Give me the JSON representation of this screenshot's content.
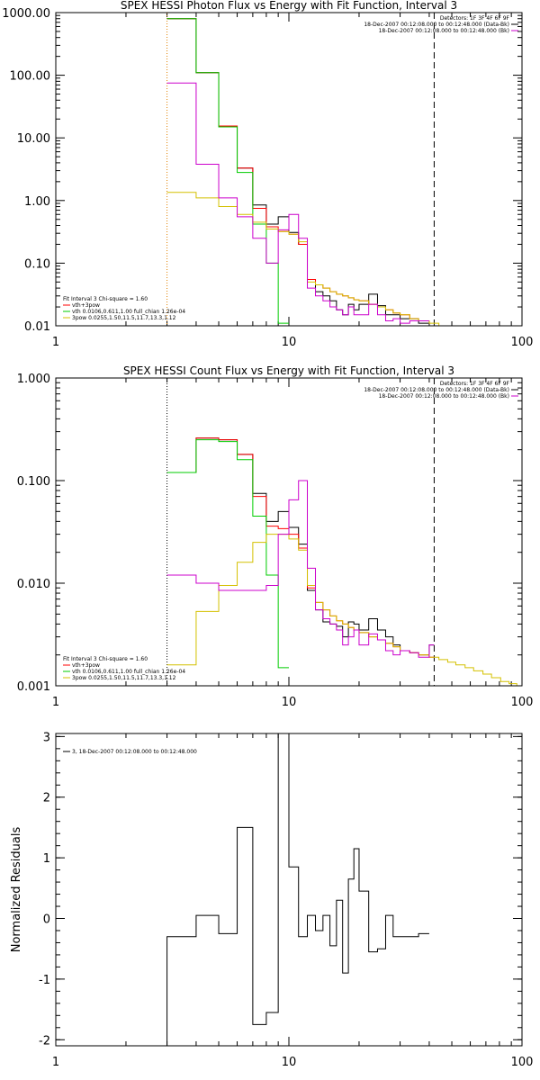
{
  "chart_data": [
    {
      "type": "line",
      "title": "SPEX HESSI Photon Flux vs Energy with Fit Function, Interval 3",
      "xlim": [
        1,
        100
      ],
      "ylim": [
        0.01,
        1000
      ],
      "xscale": "log",
      "yscale": "log",
      "xticks": [
        1,
        10,
        100
      ],
      "xtick_labels": [
        "1",
        "10",
        "100"
      ],
      "yticks": [
        0.01,
        0.1,
        1,
        10,
        100,
        1000
      ],
      "ytick_labels": [
        "0.01",
        "0.10",
        "1.00",
        "10.00",
        "100.00",
        "1000.00"
      ],
      "vlines": [
        {
          "x": 3.0,
          "style": "dotted",
          "color": "#e08000"
        },
        {
          "x": 42,
          "style": "dashed",
          "color": "#000000"
        }
      ],
      "info": [
        "Detectors: 1F 3F 4F 6F 9F",
        "18-Dec-2007 00:12:08.000 to 00:12:48.000 (Data-Bk)",
        "18-Dec-2007 00:12:08.000 to 00:12:48.000 (Bk)"
      ],
      "info_colors": [
        "#000000",
        "#000000",
        "#cc00cc"
      ],
      "legend": [
        "Fit Interval 3   Chi-square = 1.60",
        "vth+3pow",
        "vth 0.0106,0.611,1.00  full_chian 1.26e-04",
        "3pow 0.0255,1.50,11.5,11.7,13.3,1.12"
      ],
      "legend_colors": [
        "#000000",
        "#ff0000",
        "#00cc00",
        "#d4c000"
      ],
      "series": [
        {
          "color": "#000000",
          "edges": [
            3,
            4,
            5,
            6,
            7,
            8,
            9,
            10,
            11,
            12,
            13,
            14,
            15,
            16,
            17,
            18,
            19,
            20,
            22,
            24,
            26,
            28,
            30,
            33,
            36,
            40
          ],
          "values": [
            800,
            110,
            15.5,
            3.3,
            0.85,
            0.42,
            0.55,
            0.31,
            0.2,
            0.055,
            0.035,
            0.03,
            0.025,
            0.018,
            0.015,
            0.022,
            0.018,
            0.022,
            0.032,
            0.021,
            0.015,
            0.015,
            0.013,
            0.013,
            0.011
          ]
        },
        {
          "color": "#ff0000",
          "edges": [
            3,
            4,
            5,
            6,
            7,
            8,
            9,
            10,
            11,
            12,
            13,
            14,
            15,
            16,
            17,
            18,
            19,
            20,
            22,
            24,
            26,
            28,
            30,
            33,
            36,
            40
          ],
          "values": [
            800,
            110,
            15.5,
            3.3,
            0.75,
            0.38,
            0.32,
            0.29,
            0.2,
            0.055,
            0.045,
            0.04,
            0.035,
            0.032,
            0.03,
            0.028,
            0.026,
            0.025,
            0.022,
            0.02,
            0.018,
            0.016,
            0.015,
            0.013,
            0.012
          ]
        },
        {
          "color": "#00cc00",
          "edges": [
            3,
            4,
            5,
            6,
            7,
            8,
            9,
            10
          ],
          "values": [
            800,
            110,
            15,
            2.8,
            0.42,
            0.1,
            0.011
          ]
        },
        {
          "color": "#d4c000",
          "edges": [
            3,
            4,
            5,
            6,
            7,
            8,
            9,
            10,
            11,
            12,
            13,
            14,
            15,
            16,
            17,
            18,
            19,
            20,
            22,
            24,
            26,
            28,
            30,
            33,
            36,
            40,
            44,
            48
          ],
          "values": [
            1.35,
            1.1,
            0.8,
            0.6,
            0.45,
            0.35,
            0.32,
            0.29,
            0.22,
            0.05,
            0.045,
            0.04,
            0.035,
            0.032,
            0.03,
            0.028,
            0.026,
            0.025,
            0.022,
            0.02,
            0.018,
            0.016,
            0.015,
            0.013,
            0.012,
            0.011,
            0.01
          ]
        },
        {
          "color": "#cc00cc",
          "edges": [
            3,
            4,
            5,
            6,
            7,
            8,
            9,
            10,
            11,
            12,
            13,
            14,
            15,
            16,
            17,
            18,
            19,
            20,
            22,
            24,
            26,
            28,
            30,
            33,
            36,
            40
          ],
          "values": [
            75,
            3.8,
            1.1,
            0.55,
            0.25,
            0.1,
            0.34,
            0.6,
            0.25,
            0.04,
            0.03,
            0.025,
            0.02,
            0.018,
            0.015,
            0.02,
            0.015,
            0.015,
            0.022,
            0.015,
            0.012,
            0.013,
            0.011,
            0.012,
            0.012
          ]
        }
      ]
    },
    {
      "type": "line",
      "title": "SPEX HESSI Count Flux vs Energy with Fit Function, Interval 3",
      "xlim": [
        1,
        100
      ],
      "ylim": [
        0.001,
        1
      ],
      "xscale": "log",
      "yscale": "log",
      "xticks": [
        1,
        10,
        100
      ],
      "xtick_labels": [
        "1",
        "10",
        "100"
      ],
      "yticks": [
        0.001,
        0.01,
        0.1,
        1
      ],
      "ytick_labels": [
        "0.001",
        "0.010",
        "0.100",
        "1.000"
      ],
      "vlines": [
        {
          "x": 3.0,
          "style": "dotted",
          "color": "#000000"
        },
        {
          "x": 42,
          "style": "dashed",
          "color": "#000000"
        }
      ],
      "info": [
        "Detectors: 1F 3F 4F 6F 9F",
        "18-Dec-2007 00:12:08.000 to 00:12:48.000 (Data-Bk)",
        "18-Dec-2007 00:12:08.000 to 00:12:48.000 (Bk)"
      ],
      "info_colors": [
        "#000000",
        "#000000",
        "#cc00cc"
      ],
      "legend": [
        "Fit Interval 3   Chi-square = 1.60",
        "vth+3pow",
        "vth 0.0106,0.611,1.00  full_chian 1.26e-04",
        "3pow 0.0255,1.50,11.5,11.7,13.3,1.12"
      ],
      "legend_colors": [
        "#000000",
        "#ff0000",
        "#00cc00",
        "#d4c000"
      ],
      "series": [
        {
          "color": "#000000",
          "edges": [
            3,
            4,
            5,
            6,
            7,
            8,
            9,
            10,
            11,
            12,
            13,
            14,
            15,
            16,
            17,
            18,
            19,
            20,
            22,
            24,
            26,
            28,
            30,
            33,
            36,
            40,
            42
          ],
          "values": [
            0.12,
            0.26,
            0.25,
            0.18,
            0.075,
            0.04,
            0.05,
            0.035,
            0.024,
            0.0085,
            0.0055,
            0.0042,
            0.004,
            0.0038,
            0.003,
            0.0042,
            0.004,
            0.0035,
            0.0045,
            0.0035,
            0.003,
            0.0025,
            0.0022,
            0.0021,
            0.002,
            0.0025
          ]
        },
        {
          "color": "#ff0000",
          "edges": [
            3,
            4,
            5,
            6,
            7,
            8,
            9,
            10,
            11,
            12,
            13,
            14,
            15,
            16,
            17,
            18,
            19,
            20,
            22,
            24,
            26,
            28,
            30,
            33,
            36,
            40,
            42
          ],
          "values": [
            0.12,
            0.26,
            0.25,
            0.18,
            0.07,
            0.036,
            0.034,
            0.03,
            0.022,
            0.009,
            0.0065,
            0.0055,
            0.0048,
            0.0043,
            0.004,
            0.0037,
            0.0035,
            0.0033,
            0.003,
            0.0028,
            0.0026,
            0.0024,
            0.0022,
            0.0021,
            0.002,
            0.0019
          ]
        },
        {
          "color": "#00cc00",
          "edges": [
            3,
            4,
            5,
            6,
            7,
            8,
            9,
            10
          ],
          "values": [
            0.12,
            0.25,
            0.24,
            0.16,
            0.045,
            0.012,
            0.0015
          ]
        },
        {
          "color": "#d4c000",
          "edges": [
            3,
            4,
            5,
            6,
            7,
            8,
            9,
            10,
            11,
            12,
            13,
            14,
            15,
            16,
            17,
            18,
            19,
            20,
            22,
            24,
            26,
            28,
            30,
            33,
            36,
            40,
            44,
            48,
            52,
            57,
            62,
            68,
            74,
            81,
            88,
            95,
            100
          ],
          "values": [
            0.0016,
            0.0053,
            0.0095,
            0.016,
            0.025,
            0.03,
            0.03,
            0.027,
            0.021,
            0.0095,
            0.0065,
            0.0055,
            0.0048,
            0.0043,
            0.004,
            0.0037,
            0.0035,
            0.0033,
            0.003,
            0.0028,
            0.0026,
            0.0024,
            0.0022,
            0.0021,
            0.002,
            0.0019,
            0.0018,
            0.0017,
            0.0016,
            0.0015,
            0.0014,
            0.0013,
            0.0012,
            0.0011,
            0.00105,
            0.001
          ]
        },
        {
          "color": "#cc00cc",
          "edges": [
            3,
            4,
            5,
            6,
            7,
            8,
            9,
            10,
            11,
            12,
            13,
            14,
            15,
            16,
            17,
            18,
            19,
            20,
            22,
            24,
            26,
            28,
            30,
            33,
            36,
            40,
            42
          ],
          "values": [
            0.012,
            0.01,
            0.0085,
            0.0085,
            0.0085,
            0.0095,
            0.03,
            0.065,
            0.1,
            0.014,
            0.0055,
            0.0045,
            0.004,
            0.0035,
            0.0025,
            0.003,
            0.0035,
            0.0025,
            0.0032,
            0.0028,
            0.0022,
            0.002,
            0.0022,
            0.0021,
            0.0019,
            0.0025
          ]
        }
      ]
    },
    {
      "type": "line",
      "title": "",
      "ylabel": "Normalized Residuals",
      "xlim": [
        1,
        100
      ],
      "ylim": [
        -2.1,
        3.05
      ],
      "xscale": "log",
      "yscale": "linear",
      "xticks": [
        1,
        10,
        100
      ],
      "xtick_labels": [
        "1",
        "10",
        "100"
      ],
      "yticks": [
        -2,
        -1,
        0,
        1,
        2,
        3
      ],
      "ytick_labels": [
        "-2",
        "-1",
        "0",
        "1",
        "2",
        "3"
      ],
      "legend": [
        "3, 18-Dec-2007 00:12:08.000 to 00:12:48.000"
      ],
      "legend_colors": [
        "#000000"
      ],
      "series": [
        {
          "color": "#000000",
          "edges": [
            3,
            4,
            5,
            6,
            7,
            8,
            9,
            10,
            11,
            12,
            13,
            14,
            15,
            16,
            17,
            18,
            19,
            20,
            22,
            24,
            26,
            28,
            30,
            33,
            36,
            40
          ],
          "values": [
            -0.3,
            0.05,
            -0.25,
            1.5,
            -1.75,
            -1.55,
            3.05,
            0.85,
            -0.3,
            0.05,
            -0.2,
            0.05,
            -0.45,
            0.3,
            -0.9,
            0.65,
            1.15,
            0.45,
            -0.55,
            -0.5,
            0.05,
            -0.3,
            -0.3,
            -0.3,
            -0.25
          ],
          "start_bottom": true
        }
      ]
    }
  ]
}
